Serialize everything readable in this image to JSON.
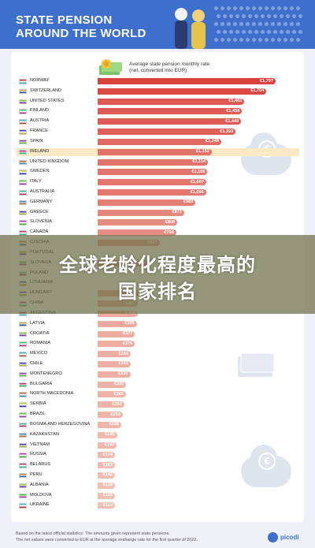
{
  "header": {
    "title_line1": "STATE PENSION",
    "title_line2": "AROUND THE WORLD"
  },
  "subtitle": {
    "line1": "Average state pension monthly rate",
    "line2": "(net, converted into EUR)"
  },
  "overlay": {
    "line1": "全球老龄化程度最高的",
    "line2": "国家排名"
  },
  "footnote": {
    "line1": "Based on the latest official statistics. The amounts given represent state pensions.",
    "line2": "The net values were converted to EUR at the average exchange rate for the first quarter of 2022."
  },
  "brand": {
    "name": "picodi"
  },
  "colors": {
    "header": "#3f6fcc",
    "bar_high": "#d9413c",
    "bar_low": "#f1c0b3",
    "highlight": "#fbe9c6"
  },
  "chart_data": {
    "type": "bar",
    "orientation": "horizontal",
    "categories": [
      "NORWAY",
      "SWITZERLAND",
      "UNITED STATES",
      "FINLAND",
      "AUSTRIA",
      "FRANCE",
      "SPAIN",
      "IRELAND",
      "UNITED KINGDOM",
      "SWEDEN",
      "ITALY",
      "AUSTRALIA",
      "GERMANY",
      "GREECE",
      "SLOVENIA",
      "CANADA",
      "CZECHIA",
      "PORTUGAL",
      "SLOVAKIA",
      "POLAND",
      "LITHUANIA",
      "HUNGARY",
      "CHINA",
      "ARGENTINA",
      "LATVIA",
      "CROATIA",
      "ROMANIA",
      "MEXICO",
      "CHILE",
      "MONTENEGRO",
      "BULGARIA",
      "NORTH MACEDONIA",
      "SERBIA",
      "BRAZIL",
      "BOSNIA AND HERZEGOVINA",
      "KAZAKHSTAN",
      "VIETNAM",
      "RUSSIA",
      "BELARUS",
      "PERU",
      "ALBANIA",
      "MOLDOVA",
      "UKRAINE"
    ],
    "values": [
      1797,
      1704,
      1482,
      1458,
      1449,
      1393,
      1248,
      1152,
      1114,
      1108,
      1097,
      1095,
      989,
      873,
      805,
      794,
      627,
      null,
      512,
      null,
      null,
      413,
      407,
      404,
      395,
      377,
      376,
      334,
      333,
      330,
      290,
      285,
      269,
      253,
      238,
      196,
      192,
      174,
      163,
      142,
      128,
      128,
      110
    ],
    "labels": [
      "€1,797",
      "€1,704",
      "€1,482",
      "€1,458",
      "€1,449",
      "€1,393",
      "€1,248",
      "€1,152",
      "€1,114",
      "€1,108",
      "€1,097",
      "€1,095",
      "€989",
      "€873",
      "€805",
      "€794",
      "€627",
      "",
      "€512",
      "",
      "",
      "€413",
      "€407",
      "€404",
      "€395",
      "€377",
      "€376",
      "€334",
      "€333",
      "€330",
      "€290",
      "€285",
      "€269",
      "€253",
      "€238",
      "€196",
      "€192",
      "€174",
      "€163",
      "€142",
      "€128",
      "€128",
      "€110"
    ],
    "highlighted": [
      "IRELAND"
    ],
    "unit": "EUR"
  }
}
